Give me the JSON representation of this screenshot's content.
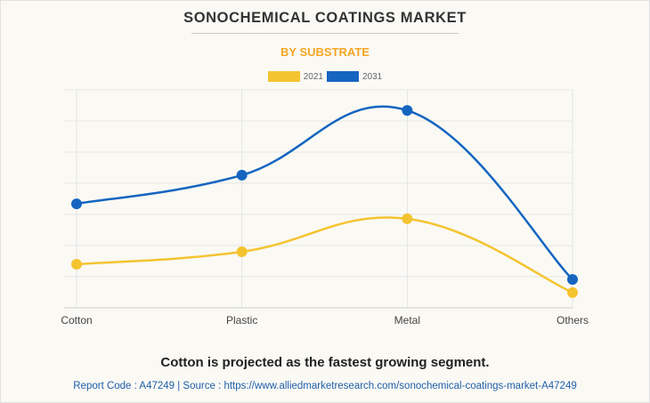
{
  "title": "SONOCHEMICAL COATINGS MARKET",
  "subtitle": "BY SUBSTRATE",
  "headline": "Cotton is projected as the fastest growing segment.",
  "source": "Report Code : A47249  |  Source : https://www.alliedmarketresearch.com/sonochemical-coatings-market-A47249",
  "colors": {
    "title": "#333333",
    "subtitle": "#f5a623",
    "series_2021": "#f4c430",
    "series_2031": "#1565c0",
    "source": "#1f5fa8"
  },
  "chart_data": {
    "type": "line",
    "title": "SONOCHEMICAL COATINGS MARKET",
    "subtitle": "BY SUBSTRATE",
    "categories": [
      "Cotton",
      "Plastic",
      "Metal",
      "Others"
    ],
    "series": [
      {
        "name": "2021",
        "color": "#f4c430",
        "values": [
          1.4,
          1.8,
          2.86,
          0.49
        ]
      },
      {
        "name": "2031",
        "color": "#1565c0",
        "values": [
          3.34,
          4.26,
          6.34,
          0.91
        ]
      }
    ],
    "xlabel": "",
    "ylabel": "",
    "ylim": [
      0,
      7
    ],
    "y_ticks_shown": false,
    "grid": true,
    "smooth": true,
    "legend": "top-center",
    "note": "No y-axis values printed; values in relative gridline units"
  }
}
